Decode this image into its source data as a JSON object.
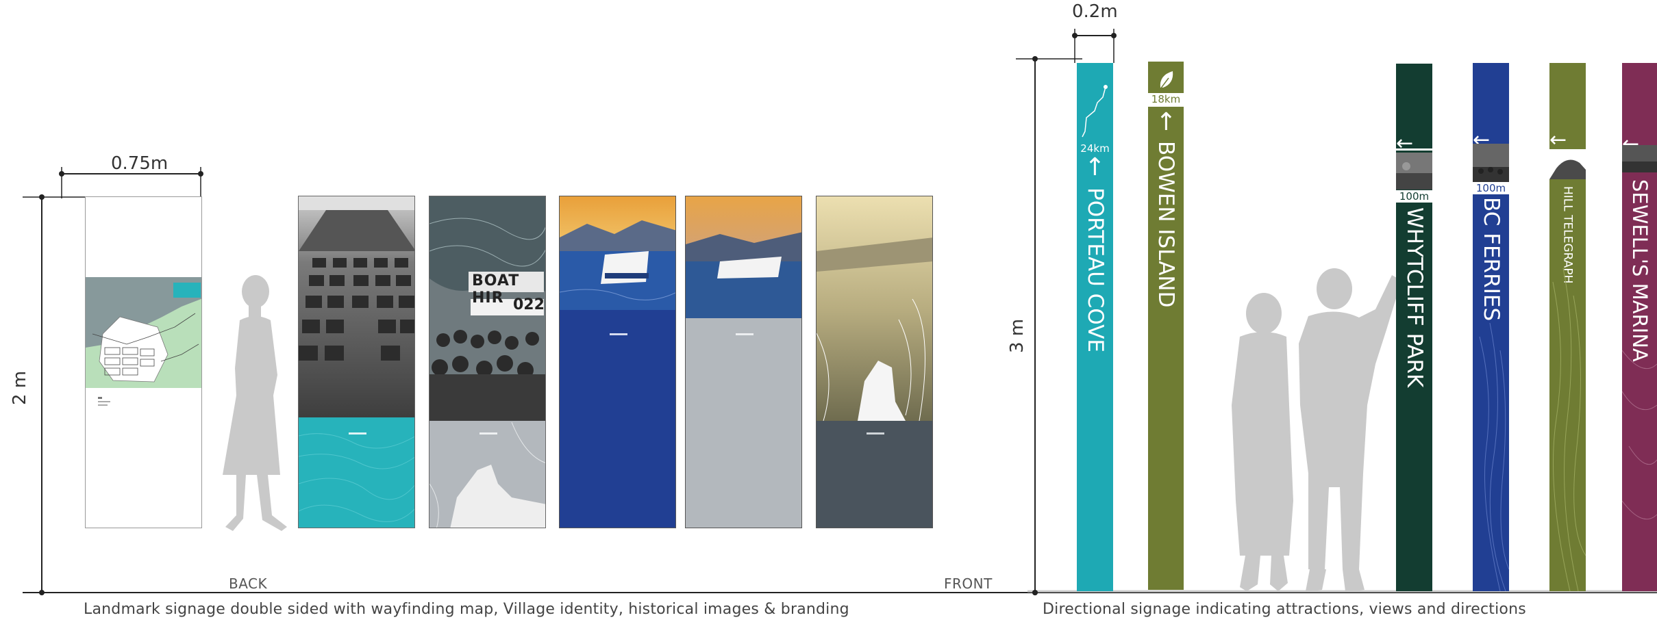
{
  "left": {
    "width_label": "0.75m",
    "height_label": "2 m",
    "back_label": "BACK",
    "front_label": "FRONT",
    "caption": "Landmark signage double sided with wayfinding map, Village identity, historical images  & branding",
    "panel_colors": {
      "teal": "#27b3bb",
      "grey": "#b3b8bd",
      "blue": "#213f93",
      "slate": "#4a545d"
    },
    "panel_sign_text": {
      "boat_hire": "BOAT HIR",
      "number": "022"
    }
  },
  "right": {
    "width_label": "0.2m",
    "height_label": "3 m",
    "caption": "Directional signage indicating attractions, views and directions",
    "posts": [
      {
        "label": "PORTEAU COVE",
        "arrow": "←",
        "distance": "24km",
        "color": "#1ea9b4"
      },
      {
        "label": "BOWEN ISLAND",
        "arrow": "←",
        "distance": "18km",
        "color": "#6f7c33"
      },
      {
        "label": "WHYTCLIFF PARK",
        "arrow": "←",
        "distance": "100m",
        "color": "#133d31"
      },
      {
        "label": "BC FERRIES",
        "arrow": "←",
        "distance": "100m",
        "color": "#213f93"
      },
      {
        "label": "HILL TELEGRAPH",
        "arrow": "←",
        "distance": "",
        "color": "#6f7c33"
      },
      {
        "label": "SEWELL'S MARINA",
        "arrow": "←",
        "distance": "",
        "color": "#7f2d55"
      }
    ]
  },
  "icons": {
    "silhouette": "person-silhouette-icon",
    "leaf": "leaf-icon",
    "arrow": "arrow-left-icon"
  }
}
